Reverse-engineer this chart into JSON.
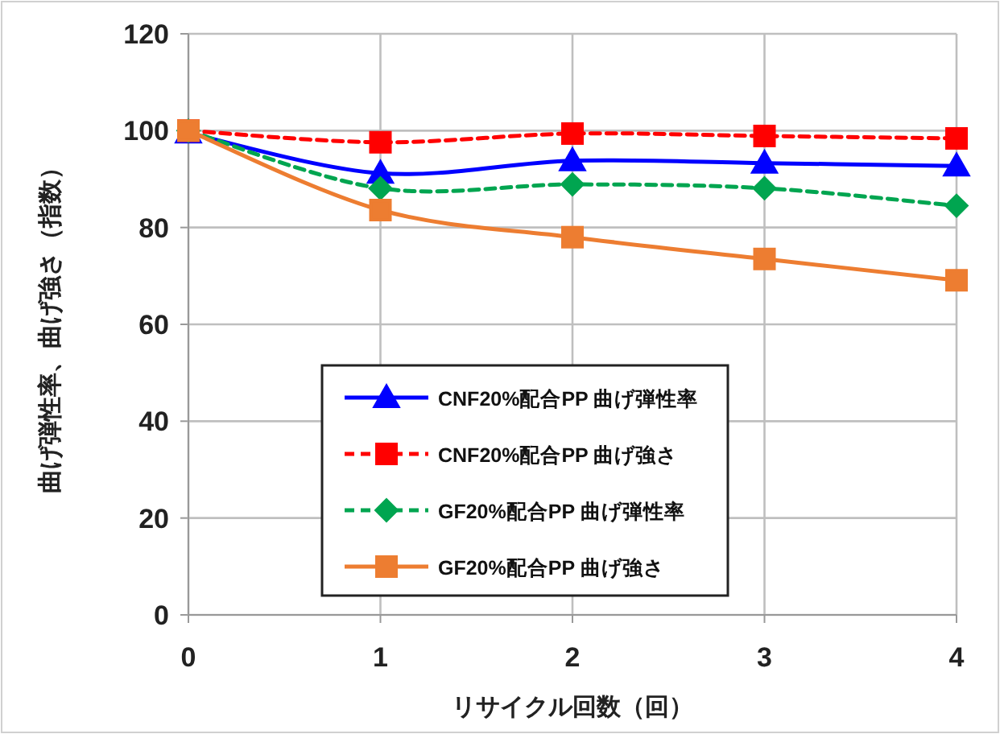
{
  "chart_data": {
    "type": "line",
    "xlabel": "リサイクル回数（回）",
    "ylabel": "曲げ弾性率、曲げ強さ（指数）",
    "x": [
      0,
      1,
      2,
      3,
      4
    ],
    "xlim": [
      0,
      4
    ],
    "xticks": [
      0,
      1,
      2,
      3,
      4
    ],
    "ylim": [
      0,
      120
    ],
    "yticks": [
      0,
      20,
      40,
      60,
      80,
      100,
      120
    ],
    "grid": true,
    "legend": "bottom",
    "series": [
      {
        "name": "CNF20%配合PP 曲げ弾性率",
        "color": "#0000ff",
        "marker": "triangle",
        "line_style": "solid",
        "values": [
          99.5,
          91.2,
          93.8,
          93.3,
          92.7
        ]
      },
      {
        "name": "CNF20%配合PP 曲げ強さ",
        "color": "#ff0000",
        "marker": "square",
        "line_style": "dashed",
        "values": [
          100,
          97.6,
          99.4,
          98.9,
          98.4
        ]
      },
      {
        "name": "GF20%配合PP 曲げ弾性率",
        "color": "#00a550",
        "marker": "diamond",
        "line_style": "dashed",
        "values": [
          100,
          88.1,
          88.9,
          88.1,
          84.5
        ]
      },
      {
        "name": "GF20%配合PP 曲げ強さ",
        "color": "#ed7d31",
        "marker": "square",
        "line_style": "solid",
        "values": [
          100,
          83.6,
          78,
          73.5,
          69.1
        ]
      }
    ]
  }
}
